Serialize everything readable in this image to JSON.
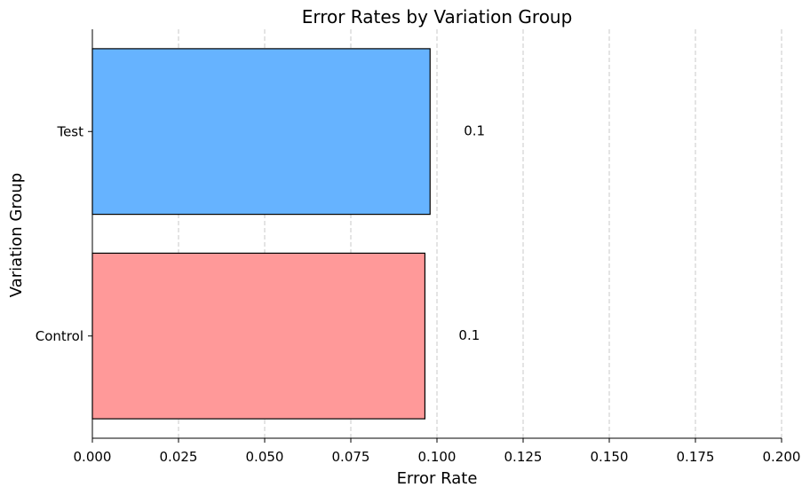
{
  "chart_data": {
    "type": "bar",
    "orientation": "horizontal",
    "title": "Error Rates by Variation Group",
    "xlabel": "Error Rate",
    "ylabel": "Variation Group",
    "categories": [
      "Control",
      "Test"
    ],
    "values": [
      0.0965,
      0.098
    ],
    "data_labels": [
      "0.1",
      "0.1"
    ],
    "colors": [
      "#ff9999",
      "#66b3ff"
    ],
    "xlim": [
      0,
      0.2
    ],
    "xticks": [
      "0.000",
      "0.025",
      "0.050",
      "0.075",
      "0.100",
      "0.125",
      "0.150",
      "0.175",
      "0.200"
    ],
    "grid": "vertical-dashed",
    "legend": "none"
  }
}
